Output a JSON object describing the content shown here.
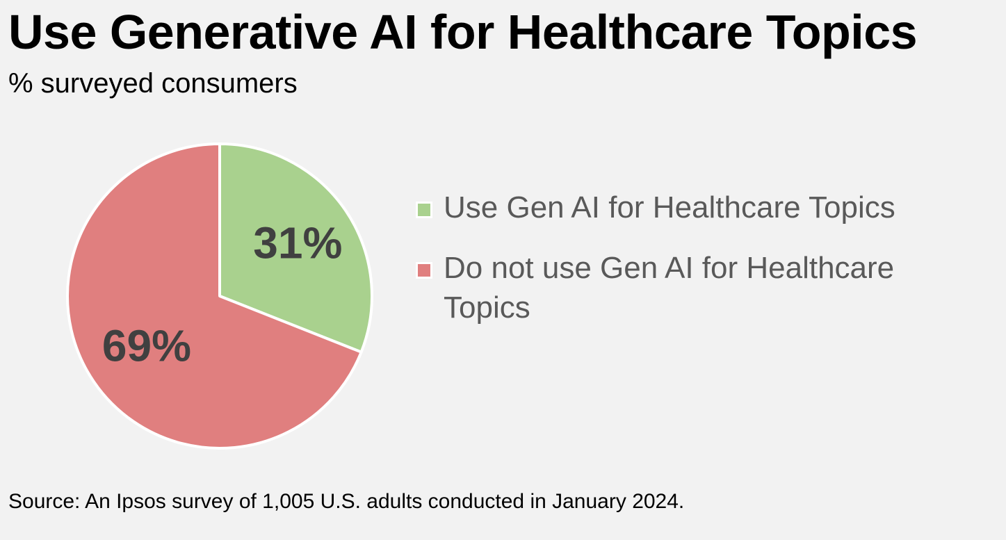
{
  "title": "Use Generative AI for Healthcare Topics",
  "subtitle": "% surveyed consumers",
  "source": "Source: An Ipsos survey of 1,005 U.S. adults conducted in January 2024.",
  "colors": {
    "background": "#f2f2f2",
    "use": "#a9d18e",
    "do_not_use": "#e07f7f",
    "slice_border": "#ffffff",
    "data_label": "#404040",
    "legend_text": "#595959"
  },
  "chart_data": {
    "type": "pie",
    "title": "Use Generative AI for Healthcare Topics",
    "subtitle": "% surveyed consumers",
    "legend_position": "right",
    "slices": [
      {
        "name": "Use Gen AI for Healthcare Topics",
        "value": 31,
        "label": "31%",
        "color": "#a9d18e"
      },
      {
        "name": "Do not use Gen AI for Healthcare Topics",
        "value": 69,
        "label": "69%",
        "color": "#e07f7f"
      }
    ]
  }
}
